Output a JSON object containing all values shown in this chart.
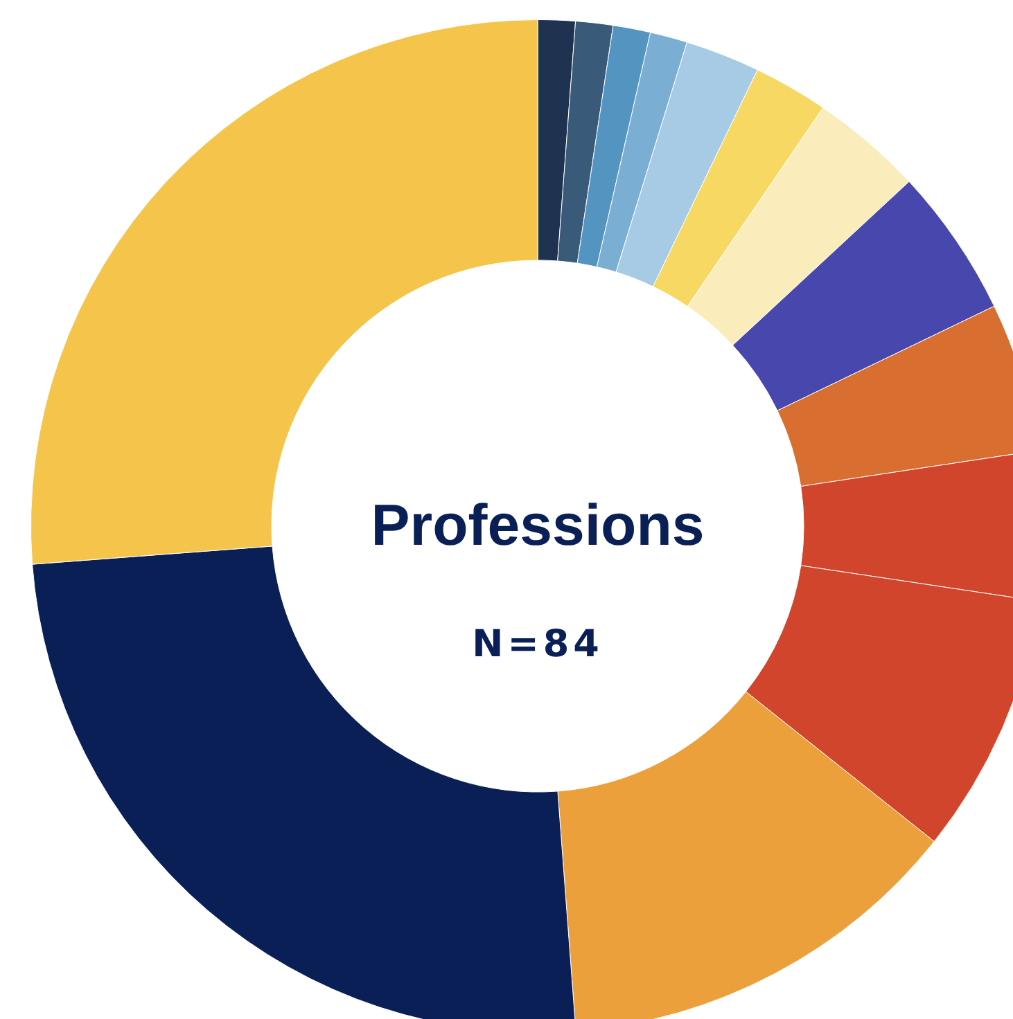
{
  "chart_data": {
    "type": "donut",
    "title": "Professions",
    "subtitle": "N=84",
    "categories": [
      null,
      null,
      null,
      null,
      null,
      null,
      null,
      null,
      null,
      null,
      null,
      null,
      null,
      null
    ],
    "values": [
      1.19,
      1.19,
      1.19,
      1.19,
      2.38,
      2.38,
      3.57,
      4.76,
      4.76,
      4.76,
      8.33,
      13.1,
      25,
      26.2
    ],
    "colors": [
      "#1f3350",
      "#3a5a7a",
      "#5494c0",
      "#7aaed3",
      "#a7cbe5",
      "#f7d862",
      "#fbecbb",
      "#4747ad",
      "#d86f30",
      "#d0452b",
      "#d0452b",
      "#eba03b",
      "#0a1f56",
      "#f4c54a"
    ],
    "legend": false
  }
}
